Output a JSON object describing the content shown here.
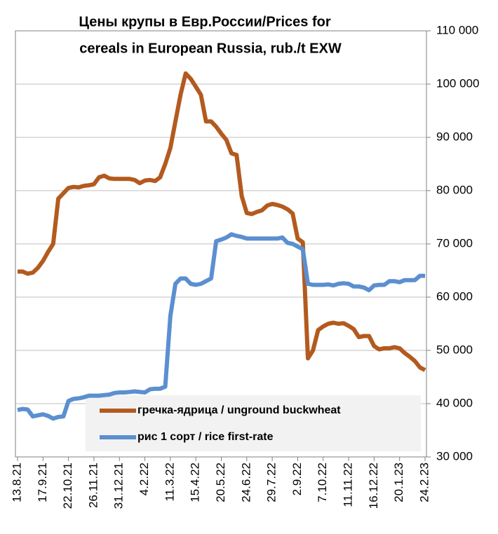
{
  "chart_data": {
    "type": "line",
    "title": [
      "Цены крупы в Евр.России/Prices for",
      "cereals in European Russia, rub./t EXW"
    ],
    "categories": [
      "13.8.21",
      null,
      null,
      null,
      null,
      "17.9.21",
      null,
      null,
      null,
      null,
      "22.10.21",
      null,
      null,
      null,
      null,
      "26.11.21",
      null,
      null,
      null,
      null,
      "31.12.21",
      null,
      null,
      null,
      null,
      "4.2.22",
      null,
      null,
      null,
      null,
      "11.3.22",
      null,
      null,
      null,
      null,
      "15.4.22",
      null,
      null,
      null,
      null,
      "20.5.22",
      null,
      null,
      null,
      null,
      "24.6.22",
      null,
      null,
      null,
      null,
      "29.7.22",
      null,
      null,
      null,
      null,
      "2.9.22",
      null,
      null,
      null,
      null,
      "7.10.22",
      null,
      null,
      null,
      null,
      "11.11.22",
      null,
      null,
      null,
      null,
      "16.12.22",
      null,
      null,
      null,
      null,
      "20.1.23",
      null,
      null,
      null,
      null,
      "24.2.23"
    ],
    "series": [
      {
        "name": "гречка-ядрица / unground buckwheat",
        "color": "#b35a1f",
        "values": [
          64800,
          64800,
          64400,
          64600,
          65500,
          66800,
          68500,
          70000,
          78500,
          79500,
          80500,
          80700,
          80600,
          80900,
          81000,
          81200,
          82500,
          82800,
          82300,
          82200,
          82200,
          82200,
          82200,
          82000,
          81400,
          81900,
          82000,
          81800,
          82500,
          85000,
          88000,
          93000,
          98000,
          102000,
          101000,
          99500,
          98000,
          93000,
          93000,
          92000,
          90700,
          89500,
          87000,
          86700,
          79000,
          75800,
          75600,
          76000,
          76300,
          77200,
          77500,
          77300,
          77000,
          76500,
          75700,
          71000,
          70300,
          48500,
          50000,
          53800,
          54500,
          55000,
          55200,
          55000,
          55100,
          54600,
          54000,
          52500,
          52700,
          52700,
          50800,
          50200,
          50400,
          50400,
          50600,
          50400,
          49500,
          48800,
          48000,
          46800,
          46300
        ]
      },
      {
        "name": "рис 1 сорт / rice first-rate",
        "color": "#5b8fd0",
        "values": [
          38800,
          39000,
          38900,
          37600,
          37800,
          38000,
          37700,
          37200,
          37500,
          37600,
          40500,
          40900,
          41000,
          41200,
          41500,
          41500,
          41500,
          41600,
          41700,
          42000,
          42100,
          42100,
          42200,
          42300,
          42200,
          42100,
          42700,
          42800,
          42800,
          43200,
          56500,
          62500,
          63500,
          63500,
          62500,
          62300,
          62500,
          63000,
          63500,
          70500,
          70800,
          71200,
          71800,
          71500,
          71300,
          71000,
          71000,
          71000,
          71000,
          71000,
          71000,
          71000,
          71200,
          70200,
          70000,
          69500,
          69000,
          62500,
          62300,
          62300,
          62300,
          62400,
          62200,
          62500,
          62600,
          62500,
          62000,
          62000,
          61800,
          61300,
          62200,
          62300,
          62300,
          63000,
          63000,
          62800,
          63200,
          63200,
          63200,
          64000,
          64000
        ]
      }
    ],
    "ylim": [
      30000,
      110000
    ],
    "yticks": [
      {
        "value": 30000,
        "label": "30 000"
      },
      {
        "value": 40000,
        "label": "40 000"
      },
      {
        "value": 50000,
        "label": "50 000"
      },
      {
        "value": 60000,
        "label": "60 000"
      },
      {
        "value": 70000,
        "label": "70 000"
      },
      {
        "value": 80000,
        "label": "80 000"
      },
      {
        "value": 90000,
        "label": "90 000"
      },
      {
        "value": 100000,
        "label": "100 000"
      },
      {
        "value": 110000,
        "label": "110 000"
      }
    ],
    "grid": true,
    "legend": "lower right"
  }
}
